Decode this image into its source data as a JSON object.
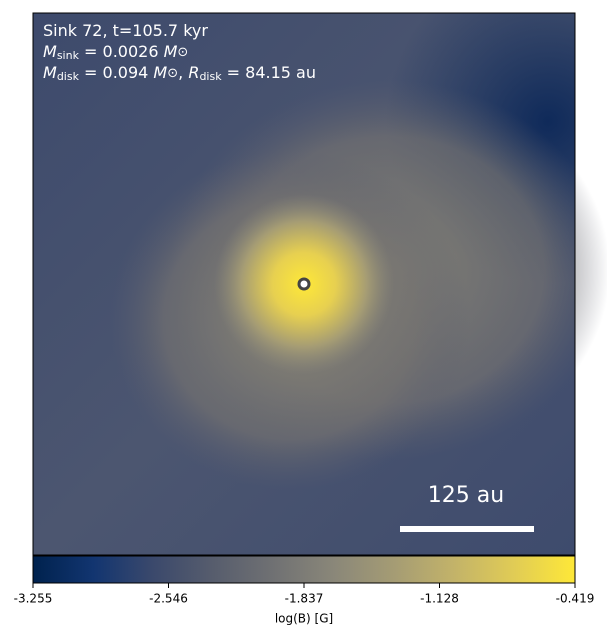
{
  "chart_data": {
    "type": "image",
    "annotations": [
      [
        "Sink 72, t=105.7 kyr"
      ],
      [
        "M",
        "sink",
        " = 0.0026 ",
        "M",
        "⊙"
      ],
      [
        "M",
        "disk",
        " = 0.094 ",
        "M",
        "⊙",
        ", ",
        "R",
        "disk",
        " = 84.15 au"
      ]
    ],
    "scale_bar_label": "125 au",
    "colorbar": {
      "label": "log(B) [G]",
      "clim": [
        -3.255,
        -0.419
      ],
      "ticks": [
        -3.255,
        -2.546,
        -1.837,
        -1.128,
        -0.419
      ],
      "colors": [
        "#00224e",
        "#123570",
        "#3b496c",
        "#575d6d",
        "#707173",
        "#8a8779",
        "#a59c74",
        "#c3b369",
        "#e1cc55",
        "#fee838"
      ]
    }
  }
}
